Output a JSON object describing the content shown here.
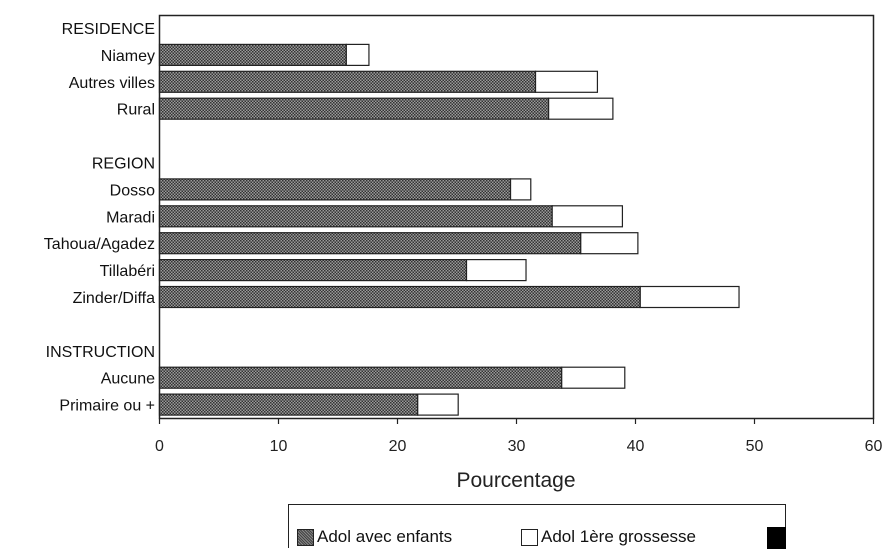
{
  "chart_data": {
    "type": "bar",
    "orientation": "horizontal",
    "stacked": true,
    "groups": [
      {
        "header": "RESIDENCE",
        "categories": [
          "Niamey",
          "Autres villes",
          "Rural"
        ]
      },
      {
        "header": "REGION",
        "categories": [
          "Dosso",
          "Maradi",
          "Tahoua/Agadez",
          "Tillabéri",
          "Zinder/Diffa"
        ]
      },
      {
        "header": "INSTRUCTION",
        "categories": [
          "Aucune",
          "Primaire ou +"
        ]
      }
    ],
    "series": [
      {
        "name": "Adol avec enfants",
        "values": [
          15.7,
          31.6,
          32.7,
          29.5,
          33.0,
          35.4,
          25.8,
          40.4,
          33.8,
          21.7
        ],
        "color": "#4d4d4d"
      },
      {
        "name": "Adol 1ère grossesse",
        "values": [
          1.9,
          5.2,
          5.4,
          1.7,
          5.9,
          4.8,
          5.0,
          8.3,
          5.3,
          3.4
        ],
        "color": "#ffffff"
      }
    ],
    "xlabel": "Pourcentage",
    "xlim": [
      0,
      60
    ],
    "xticks": [
      0,
      10,
      20,
      30,
      40,
      50,
      60
    ],
    "grid": false,
    "legend_position": "bottom"
  }
}
